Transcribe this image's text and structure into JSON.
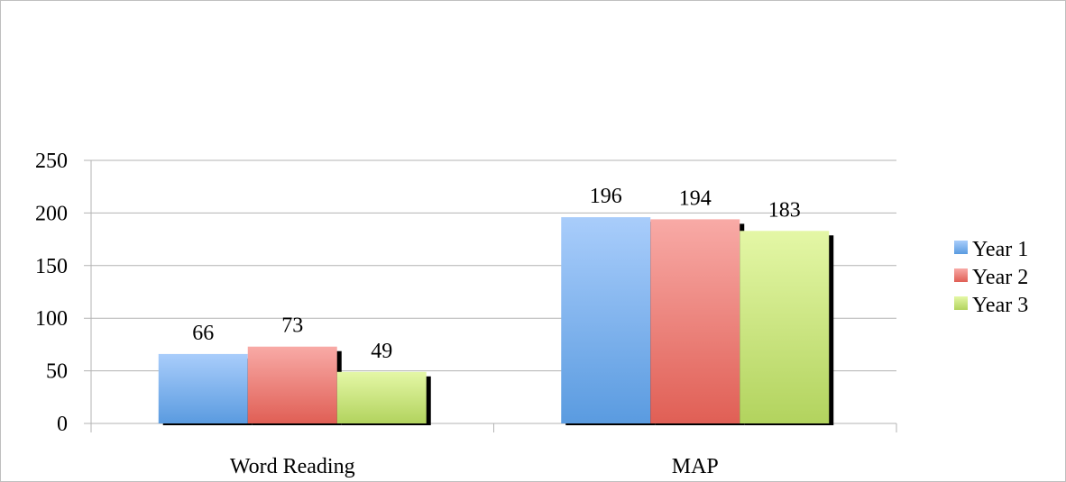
{
  "chart_data": {
    "type": "bar",
    "title": "",
    "xlabel": "",
    "ylabel": "",
    "categories": [
      "Word Reading",
      "MAP"
    ],
    "series": [
      {
        "name": "Year 1",
        "values": [
          66,
          196
        ],
        "color_top": "#a9cdfb",
        "color_bottom": "#5a9be0"
      },
      {
        "name": "Year 2",
        "values": [
          73,
          194
        ],
        "color_top": "#f8aaa6",
        "color_bottom": "#e05f55"
      },
      {
        "name": "Year 3",
        "values": [
          49,
          183
        ],
        "color_top": "#e4f7a6",
        "color_bottom": "#b2d35e"
      }
    ],
    "ylim": [
      0,
      250
    ],
    "yticks": [
      0,
      50,
      100,
      150,
      200,
      250
    ],
    "ytick_labels": [
      "0",
      "50",
      "100",
      "150",
      "200",
      "250"
    ],
    "grid": true,
    "data_labels": true,
    "legend": "right"
  }
}
